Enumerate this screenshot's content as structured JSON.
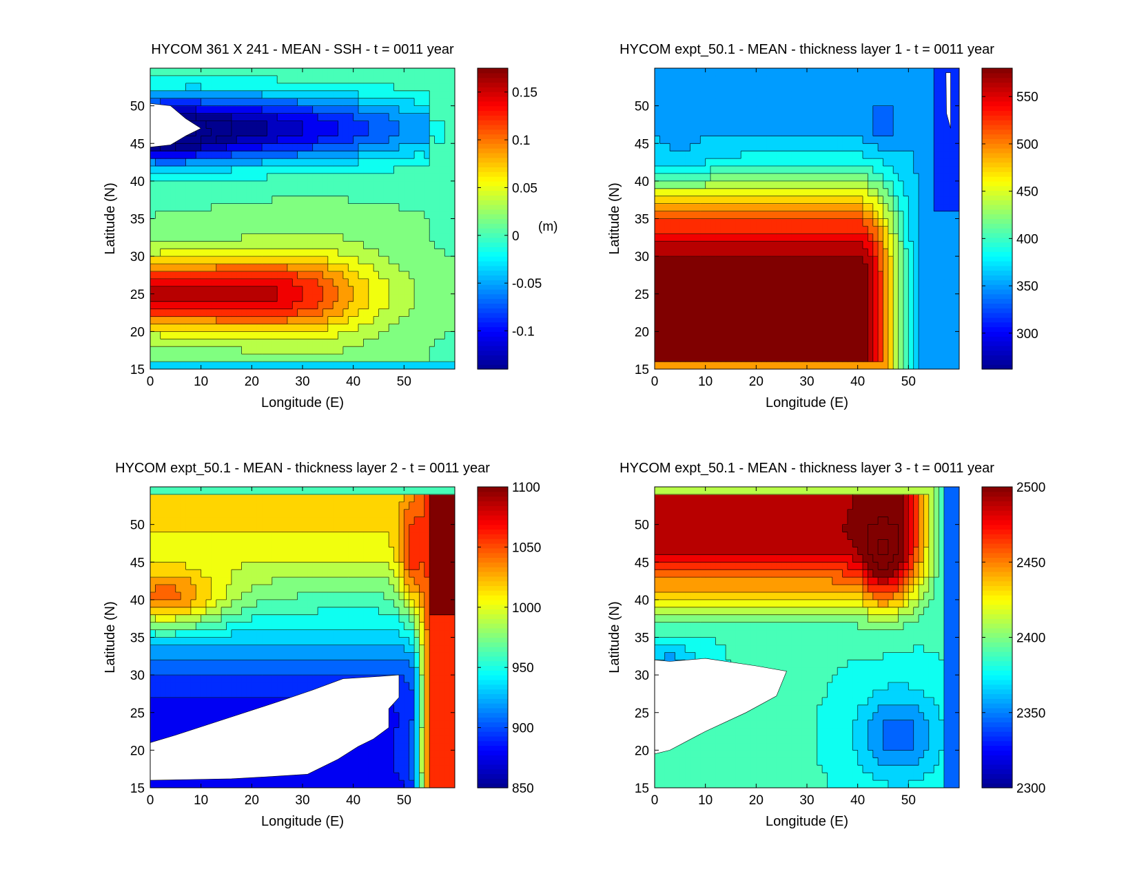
{
  "figure": {
    "colormap": [
      "#00008f",
      "#0000ff",
      "#0080ff",
      "#00ffff",
      "#80ff80",
      "#ffff00",
      "#ff8000",
      "#ff0000",
      "#800000"
    ],
    "mask_color": "#ffffff",
    "contour_color": "#000000"
  },
  "chart_data": [
    {
      "type": "heatmap",
      "title": "HYCOM 361 X 241 - MEAN - SSH - t = 0011 year",
      "xlabel": "Longitude (E)",
      "ylabel": "Latitude (N)",
      "xlim": [
        0,
        60
      ],
      "ylim": [
        15,
        55
      ],
      "xticks": [
        0,
        10,
        20,
        30,
        40,
        50
      ],
      "yticks": [
        15,
        20,
        25,
        30,
        35,
        40,
        45,
        50
      ],
      "colorbar": {
        "range": [
          -0.14,
          0.175
        ],
        "ticks": [
          -0.1,
          -0.05,
          0,
          0.05,
          0.1,
          0.15
        ],
        "tick_labels": [
          "-0.1",
          "-0.05",
          "0",
          "0.05",
          "0.1",
          "0.15"
        ],
        "unit_label": "(m)"
      },
      "grid": false
    },
    {
      "type": "heatmap",
      "title": "HYCOM expt_50.1 - MEAN - thickness layer 1 - t = 0011 year",
      "xlabel": "Longitude (E)",
      "ylabel": "Latitude (N)",
      "xlim": [
        0,
        60
      ],
      "ylim": [
        15,
        55
      ],
      "xticks": [
        0,
        10,
        20,
        30,
        40,
        50
      ],
      "yticks": [
        15,
        20,
        25,
        30,
        35,
        40,
        45,
        50
      ],
      "colorbar": {
        "range": [
          262,
          580
        ],
        "ticks": [
          300,
          350,
          400,
          450,
          500,
          550
        ],
        "tick_labels": [
          "300",
          "350",
          "400",
          "450",
          "500",
          "550"
        ],
        "unit_label": ""
      },
      "grid": false
    },
    {
      "type": "heatmap",
      "title": "HYCOM expt_50.1 - MEAN - thickness layer 2 - t = 0011 year",
      "xlabel": "Longitude (E)",
      "ylabel": "Latitude (N)",
      "xlim": [
        0,
        60
      ],
      "ylim": [
        15,
        55
      ],
      "xticks": [
        0,
        10,
        20,
        30,
        40,
        50
      ],
      "yticks": [
        15,
        20,
        25,
        30,
        35,
        40,
        45,
        50
      ],
      "colorbar": {
        "range": [
          850,
          1100
        ],
        "ticks": [
          850,
          900,
          950,
          1000,
          1050,
          1100
        ],
        "tick_labels": [
          "850",
          "900",
          "950",
          "1000",
          "1050",
          "1100"
        ],
        "unit_label": ""
      },
      "grid": false
    },
    {
      "type": "heatmap",
      "title": "HYCOM expt_50.1 - MEAN - thickness layer 3 - t = 0011 year",
      "xlabel": "Longitude (E)",
      "ylabel": "Latitude (N)",
      "xlim": [
        0,
        60
      ],
      "ylim": [
        15,
        55
      ],
      "xticks": [
        0,
        10,
        20,
        30,
        40,
        50
      ],
      "yticks": [
        15,
        20,
        25,
        30,
        35,
        40,
        45,
        50
      ],
      "colorbar": {
        "range": [
          2300,
          2500
        ],
        "ticks": [
          2300,
          2350,
          2400,
          2450,
          2500
        ],
        "tick_labels": [
          "2300",
          "2350",
          "2400",
          "2450",
          "2500"
        ],
        "unit_label": ""
      },
      "grid": false
    }
  ]
}
